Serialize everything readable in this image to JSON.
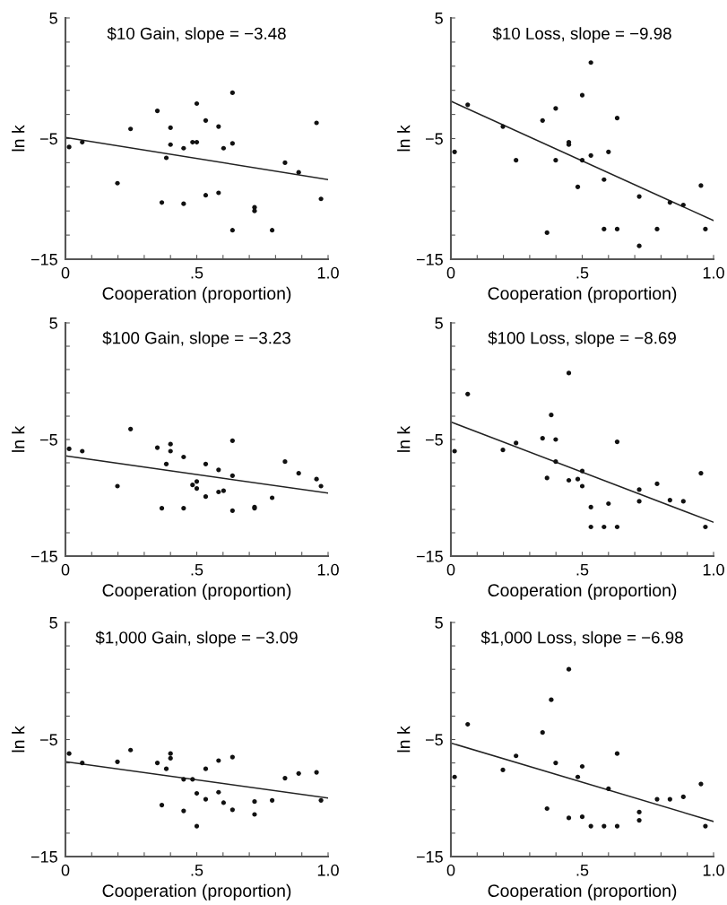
{
  "chart_data": [
    {
      "type": "scatter",
      "title": "$10 Gain, slope = −3.48",
      "xlabel": "Cooperation (proportion)",
      "ylabel": "ln k",
      "xlim": [
        0,
        1
      ],
      "ylim": [
        -15,
        5
      ],
      "marker": "circle",
      "grid": false,
      "xticks": [
        {
          "value": 0,
          "label": "0"
        },
        {
          "value": 0.1,
          "label": null
        },
        {
          "value": 0.2,
          "label": null
        },
        {
          "value": 0.3,
          "label": null
        },
        {
          "value": 0.4,
          "label": null
        },
        {
          "value": 0.5,
          "label": ".5"
        },
        {
          "value": 0.6,
          "label": null
        },
        {
          "value": 0.7,
          "label": null
        },
        {
          "value": 0.8,
          "label": null
        },
        {
          "value": 0.9,
          "label": null
        },
        {
          "value": 1,
          "label": "1.0"
        }
      ],
      "yticks": [
        {
          "value": -15,
          "label": "−15"
        },
        {
          "value": -13,
          "label": null
        },
        {
          "value": -11,
          "label": null
        },
        {
          "value": -9,
          "label": null
        },
        {
          "value": -7,
          "label": null
        },
        {
          "value": -5,
          "label": "−5"
        },
        {
          "value": -3,
          "label": null
        },
        {
          "value": -1,
          "label": null
        },
        {
          "value": 1,
          "label": null
        },
        {
          "value": 3,
          "label": null
        },
        {
          "value": 5,
          "label": "5"
        }
      ],
      "series": [
        {
          "color": "#111111",
          "x": [
            0.014,
            0.064,
            0.198,
            0.248,
            0.35,
            0.367,
            0.384,
            0.4,
            0.4,
            0.45,
            0.45,
            0.484,
            0.5,
            0.5,
            0.534,
            0.534,
            0.583,
            0.583,
            0.602,
            0.636,
            0.636,
            0.636,
            0.72,
            0.72,
            0.787,
            0.836,
            0.888,
            0.956,
            0.973
          ],
          "values": [
            -5.7,
            -5.3,
            -8.7,
            -4.2,
            -2.7,
            -10.3,
            -6.6,
            -4.1,
            -5.5,
            -5.8,
            -10.4,
            -5.3,
            -5.3,
            -2.1,
            -3.5,
            -9.7,
            -4.0,
            -9.5,
            -5.8,
            -1.2,
            -5.4,
            -12.6,
            -10.7,
            -11.0,
            -12.6,
            -7.0,
            -7.8,
            -3.7,
            -10.0
          ]
        },
        {
          "type": "line",
          "marker": "none",
          "color": "#222222",
          "x": [
            0,
            1
          ],
          "values": [
            -4.9,
            -8.4
          ]
        }
      ]
    },
    {
      "type": "scatter",
      "title": "$10 Loss, slope = −9.98",
      "xlabel": "Cooperation (proportion)",
      "ylabel": "ln k",
      "xlim": [
        0,
        1
      ],
      "ylim": [
        -15,
        5
      ],
      "marker": "circle",
      "grid": false,
      "xticks": [
        {
          "value": 0,
          "label": "0"
        },
        {
          "value": 0.1,
          "label": null
        },
        {
          "value": 0.2,
          "label": null
        },
        {
          "value": 0.3,
          "label": null
        },
        {
          "value": 0.4,
          "label": null
        },
        {
          "value": 0.5,
          "label": ".5"
        },
        {
          "value": 0.6,
          "label": null
        },
        {
          "value": 0.7,
          "label": null
        },
        {
          "value": 0.8,
          "label": null
        },
        {
          "value": 0.9,
          "label": null
        },
        {
          "value": 1,
          "label": "1.0"
        }
      ],
      "yticks": [
        {
          "value": -15,
          "label": "−15"
        },
        {
          "value": -13,
          "label": null
        },
        {
          "value": -11,
          "label": null
        },
        {
          "value": -9,
          "label": null
        },
        {
          "value": -7,
          "label": null
        },
        {
          "value": -5,
          "label": "−5"
        },
        {
          "value": -3,
          "label": null
        },
        {
          "value": -1,
          "label": null
        },
        {
          "value": 1,
          "label": null
        },
        {
          "value": 3,
          "label": null
        },
        {
          "value": 5,
          "label": "5"
        }
      ],
      "series": [
        {
          "color": "#111111",
          "x": [
            0.014,
            0.064,
            0.198,
            0.248,
            0.349,
            0.366,
            0.399,
            0.399,
            0.449,
            0.449,
            0.483,
            0.5,
            0.5,
            0.533,
            0.533,
            0.583,
            0.583,
            0.6,
            0.633,
            0.633,
            0.717,
            0.717,
            0.785,
            0.834,
            0.885,
            0.952,
            0.969
          ],
          "values": [
            -6.1,
            -2.2,
            -4.0,
            -6.8,
            -3.5,
            -12.8,
            -2.5,
            -6.8,
            -5.3,
            -5.5,
            -9.0,
            -1.4,
            -6.8,
            1.3,
            -6.4,
            -8.4,
            -12.5,
            -6.1,
            -3.3,
            -12.5,
            -9.8,
            -13.9,
            -12.5,
            -10.3,
            -10.5,
            -8.9,
            -12.5
          ]
        },
        {
          "type": "line",
          "marker": "none",
          "color": "#222222",
          "x": [
            0,
            1
          ],
          "values": [
            -1.9,
            -11.8
          ]
        }
      ]
    },
    {
      "type": "scatter",
      "title": "$100 Gain, slope = −3.23",
      "xlabel": "Cooperation (proportion)",
      "ylabel": "ln k",
      "xlim": [
        0,
        1
      ],
      "ylim": [
        -15,
        5
      ],
      "marker": "circle",
      "grid": false,
      "xticks": [
        {
          "value": 0,
          "label": "0"
        },
        {
          "value": 0.1,
          "label": null
        },
        {
          "value": 0.2,
          "label": null
        },
        {
          "value": 0.3,
          "label": null
        },
        {
          "value": 0.4,
          "label": null
        },
        {
          "value": 0.5,
          "label": ".5"
        },
        {
          "value": 0.6,
          "label": null
        },
        {
          "value": 0.7,
          "label": null
        },
        {
          "value": 0.8,
          "label": null
        },
        {
          "value": 0.9,
          "label": null
        },
        {
          "value": 1,
          "label": "1.0"
        }
      ],
      "yticks": [
        {
          "value": -15,
          "label": "−15"
        },
        {
          "value": -13,
          "label": null
        },
        {
          "value": -11,
          "label": null
        },
        {
          "value": -9,
          "label": null
        },
        {
          "value": -7,
          "label": null
        },
        {
          "value": -5,
          "label": "−5"
        },
        {
          "value": -3,
          "label": null
        },
        {
          "value": -1,
          "label": null
        },
        {
          "value": 1,
          "label": null
        },
        {
          "value": 3,
          "label": null
        },
        {
          "value": 5,
          "label": "5"
        }
      ],
      "series": [
        {
          "color": "#111111",
          "x": [
            0.014,
            0.064,
            0.198,
            0.248,
            0.35,
            0.367,
            0.384,
            0.4,
            0.4,
            0.45,
            0.45,
            0.484,
            0.5,
            0.5,
            0.534,
            0.534,
            0.583,
            0.583,
            0.602,
            0.636,
            0.636,
            0.636,
            0.72,
            0.72,
            0.787,
            0.836,
            0.888,
            0.956,
            0.973
          ],
          "values": [
            -5.8,
            -6.0,
            -9.0,
            -4.1,
            -5.7,
            -10.9,
            -7.1,
            -5.4,
            -6.0,
            -6.5,
            -10.9,
            -8.9,
            -8.6,
            -9.2,
            -7.1,
            -9.9,
            -7.6,
            -9.5,
            -9.4,
            -5.1,
            -8.1,
            -11.1,
            -10.8,
            -10.9,
            -10.0,
            -6.9,
            -7.9,
            -8.4,
            -9.0
          ]
        },
        {
          "type": "line",
          "marker": "none",
          "color": "#222222",
          "x": [
            0,
            1
          ],
          "values": [
            -6.4,
            -9.6
          ]
        }
      ]
    },
    {
      "type": "scatter",
      "title": "$100 Loss, slope = −8.69",
      "xlabel": "Cooperation (proportion)",
      "ylabel": "ln k",
      "xlim": [
        0,
        1
      ],
      "ylim": [
        -15,
        5
      ],
      "marker": "circle",
      "grid": false,
      "xticks": [
        {
          "value": 0,
          "label": "0"
        },
        {
          "value": 0.1,
          "label": null
        },
        {
          "value": 0.2,
          "label": null
        },
        {
          "value": 0.3,
          "label": null
        },
        {
          "value": 0.4,
          "label": null
        },
        {
          "value": 0.5,
          "label": ".5"
        },
        {
          "value": 0.6,
          "label": null
        },
        {
          "value": 0.7,
          "label": null
        },
        {
          "value": 0.8,
          "label": null
        },
        {
          "value": 0.9,
          "label": null
        },
        {
          "value": 1,
          "label": "1.0"
        }
      ],
      "yticks": [
        {
          "value": -15,
          "label": "−15"
        },
        {
          "value": -13,
          "label": null
        },
        {
          "value": -11,
          "label": null
        },
        {
          "value": -9,
          "label": null
        },
        {
          "value": -7,
          "label": null
        },
        {
          "value": -5,
          "label": "−5"
        },
        {
          "value": -3,
          "label": null
        },
        {
          "value": -1,
          "label": null
        },
        {
          "value": 1,
          "label": null
        },
        {
          "value": 3,
          "label": null
        },
        {
          "value": 5,
          "label": "5"
        }
      ],
      "series": [
        {
          "color": "#111111",
          "x": [
            0.014,
            0.064,
            0.198,
            0.248,
            0.349,
            0.366,
            0.382,
            0.399,
            0.399,
            0.449,
            0.449,
            0.483,
            0.5,
            0.5,
            0.533,
            0.533,
            0.583,
            0.6,
            0.633,
            0.633,
            0.717,
            0.717,
            0.785,
            0.834,
            0.885,
            0.952,
            0.969
          ],
          "values": [
            -6.0,
            -1.1,
            -5.9,
            -5.3,
            -4.9,
            -8.3,
            -2.9,
            -5.0,
            -6.9,
            0.7,
            -8.5,
            -8.4,
            -7.7,
            -9.0,
            -10.8,
            -12.5,
            -12.5,
            -10.5,
            -5.2,
            -12.5,
            -9.3,
            -10.3,
            -8.8,
            -10.2,
            -10.3,
            -7.9,
            -12.5
          ]
        },
        {
          "type": "line",
          "marker": "none",
          "color": "#222222",
          "x": [
            0,
            1
          ],
          "values": [
            -3.5,
            -12.1
          ]
        }
      ]
    },
    {
      "type": "scatter",
      "title": "$1,000 Gain, slope = −3.09",
      "xlabel": "Cooperation (proportion)",
      "ylabel": "ln k",
      "xlim": [
        0,
        1
      ],
      "ylim": [
        -15,
        5
      ],
      "marker": "circle",
      "grid": false,
      "xticks": [
        {
          "value": 0,
          "label": "0"
        },
        {
          "value": 0.1,
          "label": null
        },
        {
          "value": 0.2,
          "label": null
        },
        {
          "value": 0.3,
          "label": null
        },
        {
          "value": 0.4,
          "label": null
        },
        {
          "value": 0.5,
          "label": ".5"
        },
        {
          "value": 0.6,
          "label": null
        },
        {
          "value": 0.7,
          "label": null
        },
        {
          "value": 0.8,
          "label": null
        },
        {
          "value": 0.9,
          "label": null
        },
        {
          "value": 1,
          "label": "1.0"
        }
      ],
      "yticks": [
        {
          "value": -15,
          "label": "−15"
        },
        {
          "value": -13,
          "label": null
        },
        {
          "value": -11,
          "label": null
        },
        {
          "value": -9,
          "label": null
        },
        {
          "value": -7,
          "label": null
        },
        {
          "value": -5,
          "label": "−5"
        },
        {
          "value": -3,
          "label": null
        },
        {
          "value": -1,
          "label": null
        },
        {
          "value": 1,
          "label": null
        },
        {
          "value": 3,
          "label": null
        },
        {
          "value": 5,
          "label": "5"
        }
      ],
      "series": [
        {
          "color": "#111111",
          "x": [
            0.014,
            0.064,
            0.198,
            0.248,
            0.35,
            0.367,
            0.384,
            0.4,
            0.4,
            0.45,
            0.45,
            0.484,
            0.5,
            0.5,
            0.534,
            0.534,
            0.583,
            0.583,
            0.602,
            0.636,
            0.636,
            0.72,
            0.72,
            0.787,
            0.836,
            0.888,
            0.956,
            0.973
          ],
          "values": [
            -6.2,
            -7.0,
            -6.9,
            -5.9,
            -7.0,
            -10.6,
            -7.5,
            -6.2,
            -6.6,
            -8.4,
            -11.1,
            -8.4,
            -9.6,
            -12.4,
            -10.1,
            -7.5,
            -6.8,
            -9.5,
            -10.4,
            -6.5,
            -11.0,
            -10.3,
            -11.4,
            -10.2,
            -8.3,
            -7.9,
            -7.8,
            -10.2
          ]
        },
        {
          "type": "line",
          "marker": "none",
          "color": "#222222",
          "x": [
            0,
            1
          ],
          "values": [
            -6.9,
            -10.0
          ]
        }
      ]
    },
    {
      "type": "scatter",
      "title": "$1,000 Loss, slope = −6.98",
      "xlabel": "Cooperation (proportion)",
      "ylabel": "ln k",
      "xlim": [
        0,
        1
      ],
      "ylim": [
        -15,
        5
      ],
      "marker": "circle",
      "grid": false,
      "xticks": [
        {
          "value": 0,
          "label": "0"
        },
        {
          "value": 0.1,
          "label": null
        },
        {
          "value": 0.2,
          "label": null
        },
        {
          "value": 0.3,
          "label": null
        },
        {
          "value": 0.4,
          "label": null
        },
        {
          "value": 0.5,
          "label": ".5"
        },
        {
          "value": 0.6,
          "label": null
        },
        {
          "value": 0.7,
          "label": null
        },
        {
          "value": 0.8,
          "label": null
        },
        {
          "value": 0.9,
          "label": null
        },
        {
          "value": 1,
          "label": "1.0"
        }
      ],
      "yticks": [
        {
          "value": -15,
          "label": "−15"
        },
        {
          "value": -13,
          "label": null
        },
        {
          "value": -11,
          "label": null
        },
        {
          "value": -9,
          "label": null
        },
        {
          "value": -7,
          "label": null
        },
        {
          "value": -5,
          "label": "−5"
        },
        {
          "value": -3,
          "label": null
        },
        {
          "value": -1,
          "label": null
        },
        {
          "value": 1,
          "label": null
        },
        {
          "value": 3,
          "label": null
        },
        {
          "value": 5,
          "label": "5"
        }
      ],
      "series": [
        {
          "color": "#111111",
          "x": [
            0.014,
            0.064,
            0.198,
            0.248,
            0.349,
            0.366,
            0.382,
            0.399,
            0.449,
            0.449,
            0.483,
            0.5,
            0.5,
            0.533,
            0.583,
            0.6,
            0.633,
            0.633,
            0.717,
            0.717,
            0.785,
            0.834,
            0.885,
            0.952,
            0.969
          ],
          "values": [
            -8.2,
            -3.7,
            -7.6,
            -6.4,
            -4.4,
            -10.9,
            -1.6,
            -7.0,
            1.0,
            -11.7,
            -8.2,
            -7.3,
            -11.6,
            -12.4,
            -12.4,
            -9.2,
            -6.2,
            -12.4,
            -11.2,
            -11.9,
            -10.1,
            -10.1,
            -9.9,
            -8.8,
            -12.4
          ]
        },
        {
          "type": "line",
          "marker": "none",
          "color": "#222222",
          "x": [
            0,
            1
          ],
          "values": [
            -5.3,
            -12.0
          ]
        }
      ]
    }
  ]
}
